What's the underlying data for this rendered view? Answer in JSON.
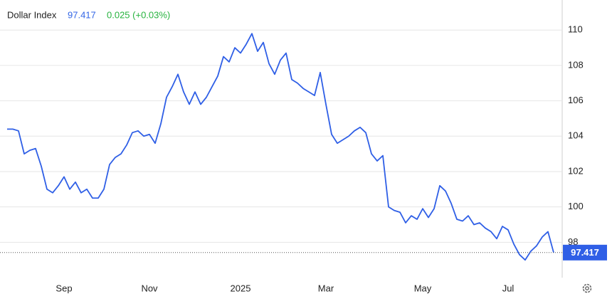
{
  "chart_data": {
    "type": "line",
    "title": "Dollar Index",
    "change": "0.025 (+0.03%)",
    "categories": [
      null,
      null,
      null,
      null,
      null,
      null,
      null,
      null,
      null,
      null,
      "Sep",
      null,
      null,
      null,
      null,
      null,
      null,
      null,
      null,
      null,
      null,
      null,
      null,
      null,
      null,
      "Nov",
      null,
      null,
      null,
      null,
      null,
      null,
      null,
      null,
      null,
      null,
      null,
      null,
      null,
      null,
      null,
      "2025",
      null,
      null,
      null,
      null,
      null,
      null,
      null,
      null,
      null,
      null,
      null,
      null,
      null,
      null,
      "Mar",
      null,
      null,
      null,
      null,
      null,
      null,
      null,
      null,
      null,
      null,
      null,
      null,
      null,
      null,
      null,
      null,
      "May",
      null,
      null,
      null,
      null,
      null,
      null,
      null,
      null,
      null,
      null,
      null,
      null,
      null,
      null,
      "Jul",
      null,
      null,
      null,
      null,
      null,
      null,
      null,
      null
    ],
    "series": [
      {
        "name": "Dollar Index",
        "color": "#2f5fe6",
        "values": [
          104.4,
          104.4,
          104.3,
          103.0,
          103.2,
          103.3,
          102.3,
          101.0,
          100.8,
          101.2,
          101.7,
          101.0,
          101.4,
          100.8,
          101.0,
          100.5,
          100.5,
          101.0,
          102.4,
          102.8,
          103.0,
          103.5,
          104.2,
          104.3,
          104.0,
          104.1,
          103.6,
          104.7,
          106.2,
          106.8,
          107.5,
          106.5,
          105.8,
          106.5,
          105.8,
          106.2,
          106.8,
          107.4,
          108.5,
          108.2,
          109.0,
          108.7,
          109.2,
          109.8,
          108.8,
          109.3,
          108.1,
          107.5,
          108.3,
          108.7,
          107.2,
          107.0,
          106.7,
          106.5,
          106.3,
          107.6,
          105.8,
          104.1,
          103.6,
          103.8,
          104.0,
          104.3,
          104.5,
          104.2,
          103.0,
          102.6,
          102.9,
          100.0,
          99.8,
          99.7,
          99.1,
          99.5,
          99.3,
          99.9,
          99.4,
          99.9,
          101.2,
          100.9,
          100.2,
          99.3,
          99.2,
          99.5,
          99.0,
          99.1,
          98.8,
          98.6,
          98.2,
          98.9,
          98.7,
          97.9,
          97.3,
          97.0,
          97.5,
          97.8,
          98.3,
          98.6,
          97.417
        ]
      }
    ],
    "ylim": [
      96,
      111.7
    ],
    "yticks": [
      98,
      100,
      102,
      104,
      106,
      108,
      110
    ],
    "grid": true
  }
}
